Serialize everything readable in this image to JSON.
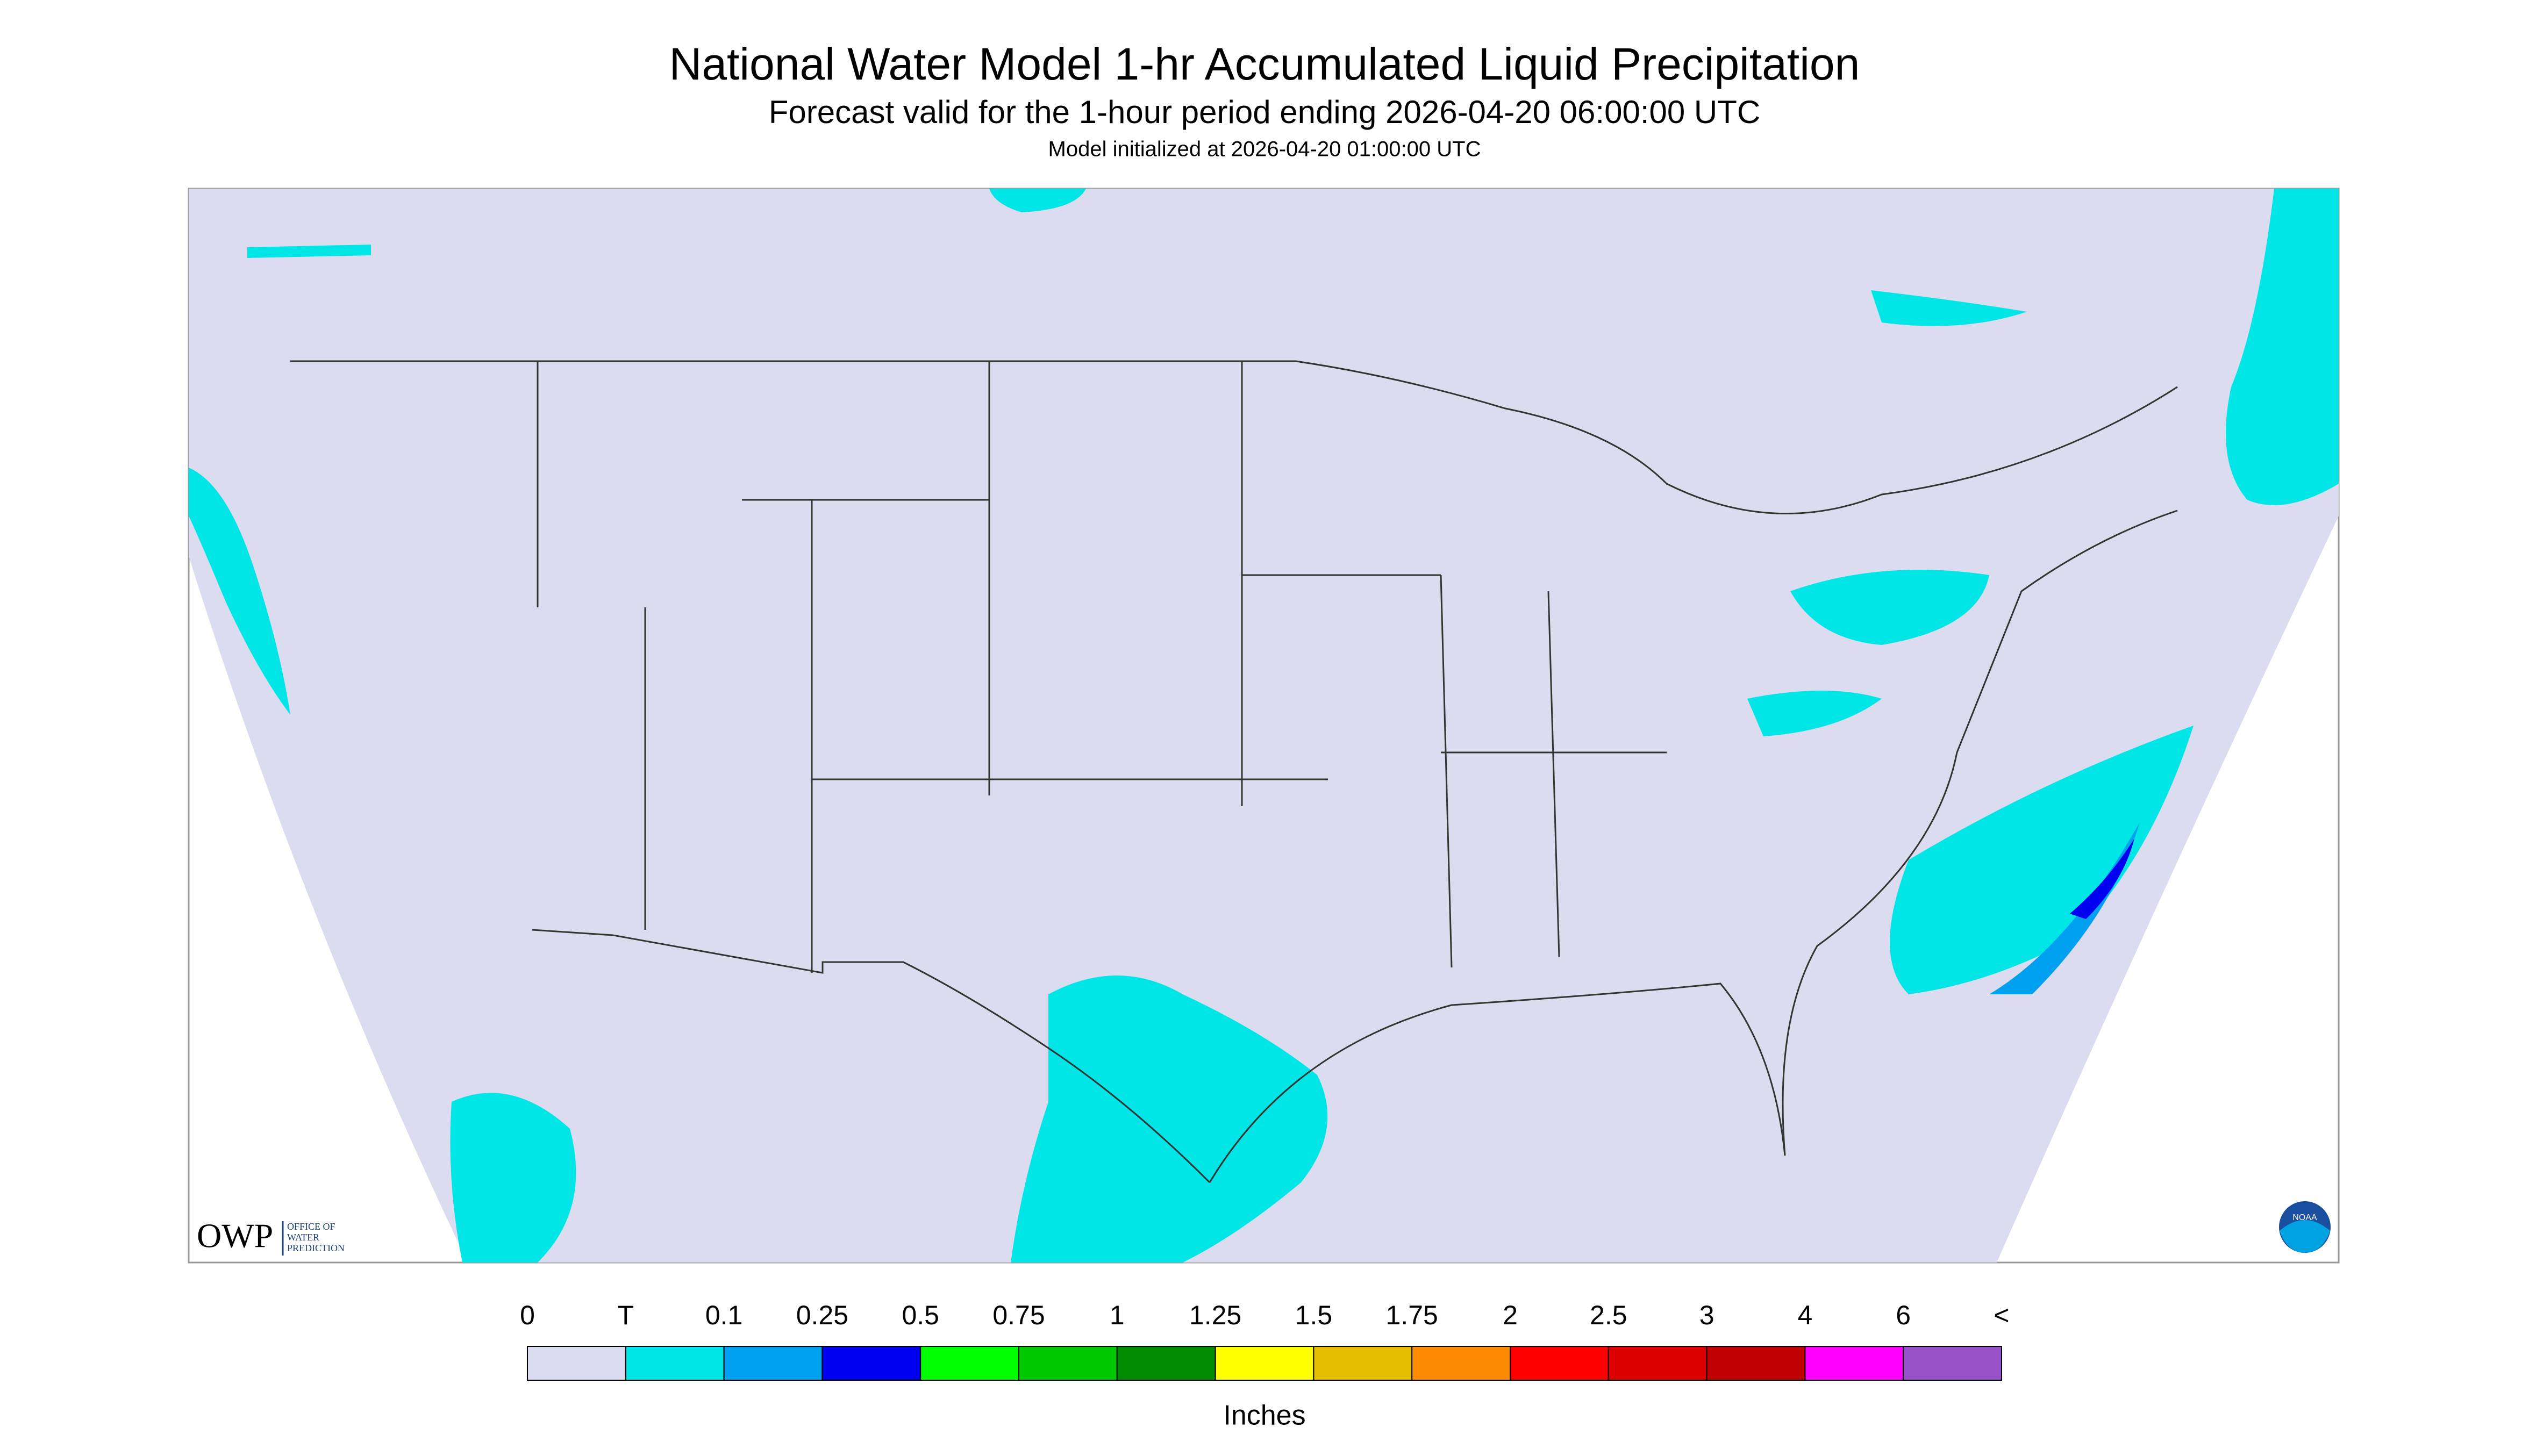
{
  "header": {
    "title": "National Water Model 1-hr Accumulated Liquid Precipitation",
    "subtitle": "Forecast valid for the 1-hour period ending 2026-04-20 06:00:00 UTC",
    "init": "Model initialized at 2026-04-20 01:00:00 UTC"
  },
  "logos": {
    "owp": "OWP",
    "owp_lines": [
      "OFFICE OF",
      "WATER",
      "PREDICTION"
    ],
    "noaa": "NOAA"
  },
  "legend": {
    "labels": [
      "0",
      "T",
      "0.1",
      "0.25",
      "0.5",
      "0.75",
      "1",
      "1.25",
      "1.5",
      "1.75",
      "2",
      "2.5",
      "3",
      "4",
      "6",
      "<"
    ],
    "colors": [
      "#dcdcf0",
      "#00e6e6",
      "#00a0f0",
      "#0000f0",
      "#00ff00",
      "#00c800",
      "#008c00",
      "#ffff00",
      "#e6be00",
      "#ff8c00",
      "#ff0000",
      "#dc0000",
      "#c00000",
      "#ff00ff",
      "#9650c8"
    ],
    "unit": "Inches"
  }
}
